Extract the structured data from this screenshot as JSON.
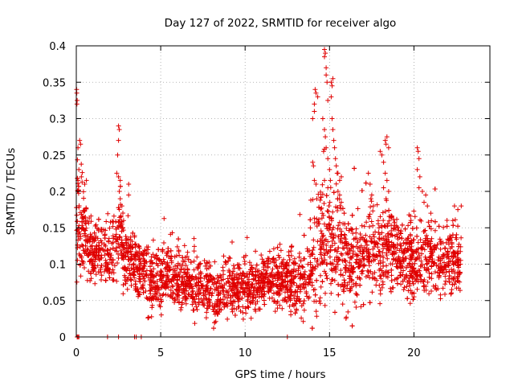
{
  "chart_data": {
    "type": "scatter",
    "title": "Day 127 of 2022, SRMTID for receiver algo",
    "xlabel": "GPS time / hours",
    "ylabel": "SRMTID / TECUs",
    "xlim": [
      0,
      24.5
    ],
    "ylim": [
      0,
      0.4
    ],
    "xticks": [
      0,
      5,
      10,
      15,
      20
    ],
    "yticks": [
      0,
      0.05,
      0.1,
      0.15,
      0.2,
      0.25,
      0.3,
      0.35,
      0.4
    ],
    "ytick_labels": [
      "0",
      "0.05",
      "0.1",
      "0.15",
      "0.2",
      "0.25",
      "0.3",
      "0.35",
      "0.4"
    ],
    "grid": true,
    "marker": "+",
    "color": "#e00000",
    "anchors": [
      [
        0.0,
        0.14
      ],
      [
        0.1,
        0.16
      ],
      [
        0.3,
        0.15
      ],
      [
        0.6,
        0.14
      ],
      [
        0.9,
        0.11
      ],
      [
        1.2,
        0.12
      ],
      [
        1.5,
        0.13
      ],
      [
        1.8,
        0.11
      ],
      [
        2.1,
        0.12
      ],
      [
        2.5,
        0.14
      ],
      [
        2.8,
        0.12
      ],
      [
        3.2,
        0.1
      ],
      [
        3.6,
        0.1
      ],
      [
        4.0,
        0.09
      ],
      [
        4.5,
        0.075
      ],
      [
        5.0,
        0.08
      ],
      [
        5.5,
        0.09
      ],
      [
        6.0,
        0.08
      ],
      [
        6.5,
        0.075
      ],
      [
        7.0,
        0.065
      ],
      [
        7.5,
        0.065
      ],
      [
        8.0,
        0.06
      ],
      [
        8.5,
        0.06
      ],
      [
        9.0,
        0.065
      ],
      [
        9.5,
        0.07
      ],
      [
        10.0,
        0.07
      ],
      [
        10.5,
        0.07
      ],
      [
        11.0,
        0.075
      ],
      [
        11.5,
        0.08
      ],
      [
        12.0,
        0.08
      ],
      [
        12.5,
        0.075
      ],
      [
        13.0,
        0.075
      ],
      [
        13.5,
        0.08
      ],
      [
        14.0,
        0.1
      ],
      [
        14.5,
        0.13
      ],
      [
        15.0,
        0.14
      ],
      [
        15.5,
        0.12
      ],
      [
        16.0,
        0.1
      ],
      [
        16.5,
        0.1
      ],
      [
        17.0,
        0.11
      ],
      [
        17.5,
        0.12
      ],
      [
        18.0,
        0.12
      ],
      [
        18.5,
        0.12
      ],
      [
        19.0,
        0.11
      ],
      [
        19.5,
        0.11
      ],
      [
        20.0,
        0.1
      ],
      [
        20.5,
        0.11
      ],
      [
        21.0,
        0.11
      ],
      [
        21.5,
        0.1
      ],
      [
        22.0,
        0.1
      ],
      [
        22.5,
        0.1
      ],
      [
        22.8,
        0.1
      ]
    ],
    "spread": [
      [
        0.0,
        0.07
      ],
      [
        1.0,
        0.045
      ],
      [
        3.0,
        0.045
      ],
      [
        5.0,
        0.04
      ],
      [
        9.0,
        0.035
      ],
      [
        12.0,
        0.035
      ],
      [
        13.5,
        0.045
      ],
      [
        14.5,
        0.09
      ],
      [
        15.5,
        0.07
      ],
      [
        17.0,
        0.06
      ],
      [
        19.0,
        0.055
      ],
      [
        21.0,
        0.05
      ],
      [
        22.8,
        0.045
      ]
    ],
    "density_per_hour": 150,
    "seed": 127,
    "spikes": [
      [
        0.02,
        0.34
      ],
      [
        0.03,
        0.335
      ],
      [
        0.04,
        0.32
      ],
      [
        0.05,
        0.325
      ],
      [
        0.1,
        0.26
      ],
      [
        0.2,
        0.27
      ],
      [
        0.25,
        0.265
      ],
      [
        0.15,
        0.23
      ],
      [
        0.1,
        0.215
      ],
      [
        0.3,
        0.22
      ],
      [
        0.5,
        0.21
      ],
      [
        0.6,
        0.215
      ],
      [
        2.5,
        0.29
      ],
      [
        2.55,
        0.285
      ],
      [
        2.5,
        0.27
      ],
      [
        2.45,
        0.25
      ],
      [
        2.4,
        0.225
      ],
      [
        2.5,
        0.22
      ],
      [
        2.6,
        0.215
      ],
      [
        2.55,
        0.2
      ],
      [
        2.6,
        0.19
      ],
      [
        2.7,
        0.18
      ],
      [
        2.65,
        0.165
      ],
      [
        2.8,
        0.16
      ],
      [
        2.7,
        0.155
      ],
      [
        3.1,
        0.21
      ],
      [
        3.1,
        0.195
      ],
      [
        14.0,
        0.3
      ],
      [
        14.1,
        0.32
      ],
      [
        14.1,
        0.31
      ],
      [
        14.15,
        0.34
      ],
      [
        14.2,
        0.335
      ],
      [
        14.3,
        0.33
      ],
      [
        14.0,
        0.24
      ],
      [
        14.05,
        0.235
      ],
      [
        14.1,
        0.215
      ],
      [
        14.2,
        0.21
      ],
      [
        14.25,
        0.19
      ],
      [
        14.7,
        0.395
      ],
      [
        14.7,
        0.385
      ],
      [
        14.75,
        0.39
      ],
      [
        14.8,
        0.37
      ],
      [
        14.8,
        0.36
      ],
      [
        14.85,
        0.35
      ],
      [
        14.9,
        0.325
      ],
      [
        14.6,
        0.3
      ],
      [
        14.7,
        0.285
      ],
      [
        14.75,
        0.275
      ],
      [
        14.65,
        0.255
      ],
      [
        14.8,
        0.26
      ],
      [
        14.9,
        0.245
      ],
      [
        15.0,
        0.23
      ],
      [
        14.7,
        0.215
      ],
      [
        14.9,
        0.205
      ],
      [
        15.05,
        0.215
      ],
      [
        15.1,
        0.35
      ],
      [
        15.15,
        0.345
      ],
      [
        15.2,
        0.355
      ],
      [
        15.1,
        0.33
      ],
      [
        15.15,
        0.3
      ],
      [
        15.2,
        0.285
      ],
      [
        15.25,
        0.27
      ],
      [
        15.3,
        0.26
      ],
      [
        15.35,
        0.245
      ],
      [
        15.4,
        0.235
      ],
      [
        15.45,
        0.225
      ],
      [
        15.5,
        0.225
      ],
      [
        15.6,
        0.215
      ],
      [
        15.7,
        0.22
      ],
      [
        15.5,
        0.2
      ],
      [
        15.6,
        0.195
      ],
      [
        15.7,
        0.185
      ],
      [
        17.3,
        0.225
      ],
      [
        17.4,
        0.21
      ],
      [
        17.5,
        0.195
      ],
      [
        17.45,
        0.19
      ],
      [
        17.6,
        0.18
      ],
      [
        18.0,
        0.255
      ],
      [
        18.1,
        0.25
      ],
      [
        18.2,
        0.24
      ],
      [
        18.3,
        0.27
      ],
      [
        18.35,
        0.265
      ],
      [
        18.4,
        0.275
      ],
      [
        18.5,
        0.26
      ],
      [
        18.3,
        0.225
      ],
      [
        18.4,
        0.215
      ],
      [
        18.2,
        0.205
      ],
      [
        18.5,
        0.2
      ],
      [
        18.35,
        0.19
      ],
      [
        20.2,
        0.26
      ],
      [
        20.25,
        0.255
      ],
      [
        20.3,
        0.245
      ],
      [
        20.2,
        0.23
      ],
      [
        20.35,
        0.22
      ],
      [
        20.3,
        0.205
      ],
      [
        20.5,
        0.2
      ],
      [
        20.7,
        0.195
      ],
      [
        20.6,
        0.185
      ],
      [
        20.8,
        0.18
      ],
      [
        21.0,
        0.17
      ],
      [
        22.4,
        0.18
      ],
      [
        22.3,
        0.16
      ],
      [
        22.6,
        0.175
      ],
      [
        22.8,
        0.18
      ]
    ],
    "zero_points": [
      0.05,
      0.1,
      0.15,
      1.85,
      2.5,
      3.45,
      3.55,
      3.85,
      12.5
    ]
  }
}
